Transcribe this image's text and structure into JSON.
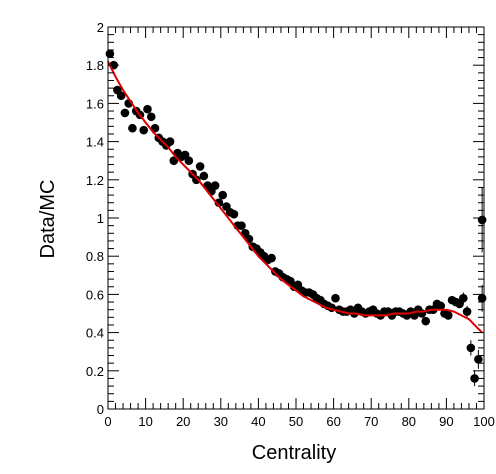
{
  "chart_data": {
    "type": "scatter",
    "title": "",
    "xlabel": "Centrality",
    "ylabel": "Data/MC",
    "xlim": [
      0,
      100
    ],
    "ylim": [
      0,
      2
    ],
    "x_ticks": [
      0,
      10,
      20,
      30,
      40,
      50,
      60,
      70,
      80,
      90,
      100
    ],
    "y_ticks": [
      0,
      0.2,
      0.4,
      0.6,
      0.8,
      1,
      1.2,
      1.4,
      1.6,
      1.8,
      2
    ],
    "grid": false,
    "legend": "none",
    "colors": {
      "points": "#000000",
      "fit": "#e00000",
      "axes": "#000000"
    },
    "series": [
      {
        "kind": "points",
        "x": [
          0.5,
          1.5,
          2.5,
          3.5,
          4.5,
          5.5,
          6.5,
          7.5,
          8.5,
          9.5,
          10.5,
          11.5,
          12.5,
          13.5,
          14.5,
          15.5,
          16.5,
          17.5,
          18.5,
          19.5,
          20.5,
          21.5,
          22.5,
          23.5,
          24.5,
          25.5,
          26.5,
          27.5,
          28.5,
          29.5,
          30.5,
          31.5,
          32.5,
          33.5,
          34.5,
          35.5,
          36.5,
          37.5,
          38.5,
          39.5,
          40.5,
          41.5,
          42.5,
          43.5,
          44.5,
          45.5,
          46.5,
          47.5,
          48.5,
          49.5,
          50.5,
          51.5,
          52.5,
          53.5,
          54.5,
          55.5,
          56.5,
          57.5,
          58.5,
          59.5,
          60.5,
          61.5,
          62.5,
          63.5,
          64.5,
          65.5,
          66.5,
          67.5,
          68.5,
          69.5,
          70.5,
          71.5,
          72.5,
          73.5,
          74.5,
          75.5,
          76.5,
          77.5,
          78.5,
          79.5,
          80.5,
          81.5,
          82.5,
          83.5,
          84.5,
          85.5,
          86.5,
          87.5,
          88.5,
          89.5,
          90.5,
          91.5,
          92.5,
          93.5,
          94.5,
          95.5,
          96.5,
          97.5,
          98.5,
          99.5
        ],
        "y": [
          1.86,
          1.8,
          1.67,
          1.64,
          1.55,
          1.6,
          1.47,
          1.56,
          1.54,
          1.46,
          1.57,
          1.53,
          1.47,
          1.42,
          1.4,
          1.38,
          1.4,
          1.3,
          1.34,
          1.32,
          1.33,
          1.3,
          1.23,
          1.2,
          1.27,
          1.22,
          1.17,
          1.14,
          1.17,
          1.08,
          1.12,
          1.06,
          1.03,
          1.02,
          0.96,
          0.96,
          0.92,
          0.89,
          0.85,
          0.84,
          0.82,
          0.8,
          0.78,
          0.79,
          0.72,
          0.71,
          0.69,
          0.68,
          0.67,
          0.64,
          0.65,
          0.62,
          0.61,
          0.61,
          0.6,
          0.58,
          0.57,
          0.55,
          0.54,
          0.53,
          0.58,
          0.52,
          0.51,
          0.51,
          0.52,
          0.5,
          0.53,
          0.51,
          0.5,
          0.51,
          0.52,
          0.5,
          0.49,
          0.51,
          0.51,
          0.49,
          0.51,
          0.51,
          0.5,
          0.49,
          0.51,
          0.49,
          0.52,
          0.5,
          0.46,
          0.52,
          0.52,
          0.55,
          0.54,
          0.5,
          0.49,
          0.57,
          0.56,
          0.55,
          0.58,
          0.51,
          0.32,
          0.16,
          0.26,
          0.58
        ],
        "y_err": [
          0.02,
          0.02,
          0.02,
          0.02,
          0.02,
          0.02,
          0.02,
          0.02,
          0.02,
          0.02,
          0.02,
          0.02,
          0.02,
          0.02,
          0.02,
          0.02,
          0.02,
          0.02,
          0.02,
          0.02,
          0.02,
          0.02,
          0.02,
          0.02,
          0.02,
          0.02,
          0.02,
          0.02,
          0.02,
          0.02,
          0.02,
          0.02,
          0.02,
          0.02,
          0.02,
          0.02,
          0.02,
          0.02,
          0.02,
          0.02,
          0.02,
          0.02,
          0.02,
          0.02,
          0.02,
          0.02,
          0.02,
          0.02,
          0.02,
          0.02,
          0.02,
          0.02,
          0.02,
          0.02,
          0.02,
          0.02,
          0.02,
          0.02,
          0.02,
          0.02,
          0.02,
          0.02,
          0.02,
          0.02,
          0.02,
          0.02,
          0.02,
          0.02,
          0.02,
          0.02,
          0.02,
          0.02,
          0.02,
          0.02,
          0.02,
          0.02,
          0.02,
          0.02,
          0.02,
          0.02,
          0.02,
          0.02,
          0.02,
          0.02,
          0.02,
          0.02,
          0.02,
          0.02,
          0.02,
          0.02,
          0.02,
          0.02,
          0.02,
          0.02,
          0.03,
          0.03,
          0.04,
          0.04,
          0.05,
          0.07
        ]
      },
      {
        "kind": "points",
        "x": [
          99.5
        ],
        "y": [
          0.99
        ],
        "y_err": [
          0.17
        ]
      },
      {
        "kind": "fit-line",
        "x": [
          0,
          2,
          4,
          6,
          8,
          10,
          12,
          14,
          16,
          18,
          20,
          22,
          24,
          26,
          28,
          30,
          32,
          34,
          36,
          38,
          40,
          42,
          44,
          46,
          48,
          50,
          52,
          54,
          56,
          58,
          60,
          62,
          64,
          66,
          68,
          70,
          72,
          74,
          76,
          78,
          80,
          82,
          84,
          86,
          88,
          90,
          92,
          94,
          96,
          98,
          99.5
        ],
        "y": [
          1.82,
          1.74,
          1.67,
          1.61,
          1.55,
          1.5,
          1.45,
          1.41,
          1.37,
          1.32,
          1.28,
          1.24,
          1.2,
          1.15,
          1.1,
          1.05,
          1.0,
          0.95,
          0.9,
          0.85,
          0.8,
          0.76,
          0.72,
          0.68,
          0.65,
          0.62,
          0.59,
          0.57,
          0.55,
          0.53,
          0.52,
          0.51,
          0.5,
          0.5,
          0.49,
          0.49,
          0.49,
          0.49,
          0.5,
          0.5,
          0.5,
          0.51,
          0.51,
          0.52,
          0.52,
          0.52,
          0.51,
          0.49,
          0.47,
          0.43,
          0.4
        ]
      }
    ]
  }
}
